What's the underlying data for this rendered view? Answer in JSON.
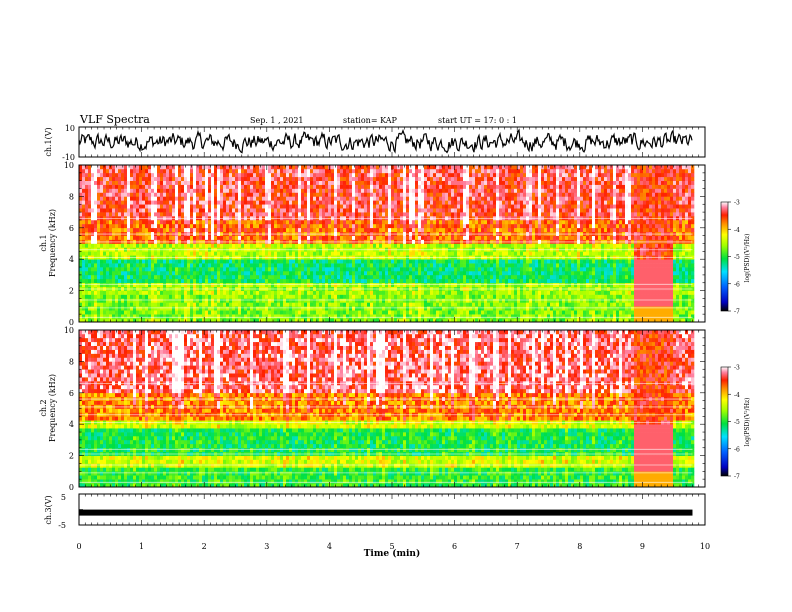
{
  "header": {
    "title": "VLF Spectra",
    "date": "Sep. 1 , 2021",
    "station": "station= KAP",
    "start": "start UT =  17: 0  : 1"
  },
  "colorbar": {
    "label": "log(PSD)(V²/Hz)",
    "ticks": [
      "-3",
      "-4",
      "-5",
      "-6",
      "-7"
    ]
  },
  "chart_data": [
    {
      "type": "line",
      "name": "ch1-waveform",
      "ylabel": "ch.1(V)",
      "ylim": [
        -10,
        10
      ],
      "yticks": [
        "10",
        "-10"
      ],
      "xlim": [
        0,
        10
      ],
      "note_values": "noisy trace between about -7 V and 7 V from 0 to 9.8 min",
      "x_end": 9.8
    },
    {
      "type": "heatmap",
      "name": "ch1-spectrogram",
      "ylabel": "ch.1\nFrequency (kHz)",
      "ylim": [
        0,
        10
      ],
      "yticks": [
        "0",
        "2",
        "4",
        "6",
        "8",
        "10"
      ],
      "xlim": [
        0,
        10
      ],
      "x_end": 9.8,
      "clim": [
        -7,
        -3
      ],
      "bands": [
        {
          "f": [
            6.5,
            10
          ],
          "level": -3.4
        },
        {
          "f": [
            5.0,
            6.5
          ],
          "level": -3.7
        },
        {
          "f": [
            4.0,
            5.0
          ],
          "level": -4.5
        },
        {
          "f": [
            2.6,
            4.0
          ],
          "level": -5.2
        },
        {
          "f": [
            1.7,
            2.6
          ],
          "level": -4.6
        },
        {
          "f": [
            0.0,
            1.7
          ],
          "level": -4.7
        }
      ],
      "burst_minutes": [
        8.85,
        9.45
      ]
    },
    {
      "type": "heatmap",
      "name": "ch2-spectrogram",
      "ylabel": "ch.2\nFrequency (kHz)",
      "ylim": [
        0,
        10
      ],
      "yticks": [
        "0",
        "2",
        "4",
        "6",
        "8",
        "10"
      ],
      "xlim": [
        0,
        10
      ],
      "x_end": 9.8,
      "clim": [
        -7,
        -3
      ],
      "bands": [
        {
          "f": [
            6.0,
            10
          ],
          "level": -3.3
        },
        {
          "f": [
            4.2,
            6.0
          ],
          "level": -3.8
        },
        {
          "f": [
            3.8,
            4.2
          ],
          "level": -4.4
        },
        {
          "f": [
            1.9,
            3.8
          ],
          "level": -5.1
        },
        {
          "f": [
            1.3,
            1.9
          ],
          "level": -4.4
        },
        {
          "f": [
            0.0,
            1.3
          ],
          "level": -5.0
        }
      ],
      "burst_minutes": [
        8.85,
        9.45
      ]
    },
    {
      "type": "line",
      "name": "ch3-waveform",
      "ylabel": "ch.3(V)",
      "ylim": [
        -5,
        5
      ],
      "yticks": [
        "5",
        "-5"
      ],
      "xlim": [
        0,
        10
      ],
      "x_end": 9.8,
      "level": -1.0,
      "xlabel": "Time (min)",
      "xticks": [
        "0",
        "1",
        "2",
        "3",
        "4",
        "5",
        "6",
        "7",
        "8",
        "9",
        "10"
      ]
    }
  ]
}
